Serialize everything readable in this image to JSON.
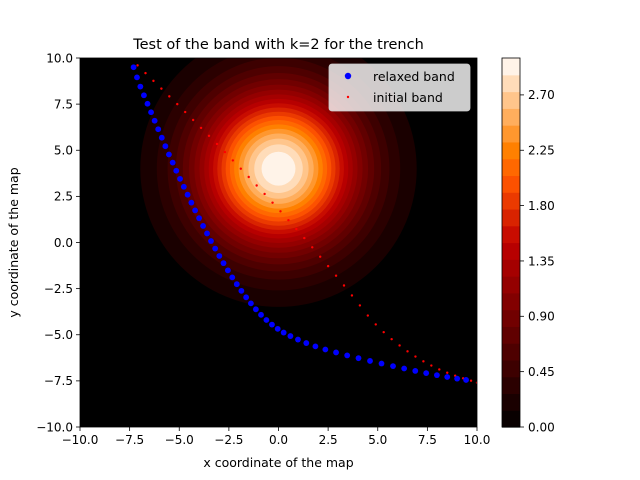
{
  "chart_data": {
    "type": "scatter",
    "title": "Test of the band with k=2 for the trench",
    "xlabel": "x coordinate of the map",
    "ylabel": "y coordinate of the map",
    "xlim": [
      -10,
      10
    ],
    "ylim": [
      -10,
      10
    ],
    "xticks": [
      -10,
      -7.5,
      -5,
      -2.5,
      0,
      2.5,
      5,
      7.5,
      10
    ],
    "yticks": [
      -10,
      -7.5,
      -5,
      -2.5,
      0,
      2.5,
      5,
      7.5,
      10
    ],
    "xtick_labels": [
      "−10.0",
      "−7.5",
      "−5.0",
      "−2.5",
      "0.0",
      "2.5",
      "5.0",
      "7.5",
      "10.0"
    ],
    "ytick_labels": [
      "−10.0",
      "−7.5",
      "−5.0",
      "−2.5",
      "0.0",
      "2.5",
      "5.0",
      "7.5",
      "10.0"
    ],
    "grid": false,
    "legend_position": "top-right",
    "legend": [
      {
        "label": "relaxed band",
        "color": "#0000ff",
        "marker": "large-dot"
      },
      {
        "label": "initial band",
        "color": "#ff0000",
        "marker": "small-dot"
      }
    ],
    "background_field": {
      "type": "filled-contour",
      "colormap": "gist_heat",
      "peak_center": [
        0,
        4
      ],
      "peak_value": 3.0,
      "levels": 22,
      "colorbar_range": [
        0,
        3.0
      ],
      "colorbar_ticks": [
        0.0,
        0.45,
        0.9,
        1.35,
        1.8,
        2.25,
        2.7
      ],
      "colorbar_tick_labels": [
        "0.00",
        "0.45",
        "0.90",
        "1.35",
        "1.80",
        "2.25",
        "2.70"
      ]
    },
    "series": [
      {
        "name": "relaxed band",
        "color": "#0000ff",
        "x": [
          -7.3,
          -7.13,
          -6.96,
          -6.78,
          -6.6,
          -6.42,
          -6.24,
          -6.06,
          -5.88,
          -5.7,
          -5.52,
          -5.33,
          -5.15,
          -4.96,
          -4.77,
          -4.58,
          -4.39,
          -4.2,
          -4.0,
          -3.8,
          -3.6,
          -3.4,
          -3.19,
          -2.98,
          -2.77,
          -2.55,
          -2.33,
          -2.1,
          -1.87,
          -1.63,
          -1.39,
          -1.14,
          -0.88,
          -0.61,
          -0.33,
          -0.04,
          0.26,
          0.6,
          0.98,
          1.4,
          1.86,
          2.36,
          2.9,
          3.46,
          4.03,
          4.61,
          5.19,
          5.77,
          6.33,
          6.89,
          7.44,
          7.98,
          8.5,
          9.0,
          9.45
        ],
        "y": [
          9.5,
          8.95,
          8.45,
          7.98,
          7.52,
          7.06,
          6.6,
          6.14,
          5.68,
          5.22,
          4.77,
          4.33,
          3.89,
          3.45,
          3.02,
          2.59,
          2.16,
          1.74,
          1.32,
          0.9,
          0.49,
          0.08,
          -0.33,
          -0.73,
          -1.12,
          -1.51,
          -1.89,
          -2.26,
          -2.62,
          -2.97,
          -3.3,
          -3.62,
          -3.92,
          -4.2,
          -4.45,
          -4.68,
          -4.88,
          -5.07,
          -5.26,
          -5.45,
          -5.63,
          -5.8,
          -5.96,
          -6.12,
          -6.27,
          -6.42,
          -6.56,
          -6.7,
          -6.83,
          -6.96,
          -7.08,
          -7.19,
          -7.29,
          -7.38,
          -7.45
        ]
      },
      {
        "name": "initial band",
        "color": "#ff0000",
        "x": [
          -7.1,
          -6.7,
          -6.3,
          -5.9,
          -5.5,
          -5.1,
          -4.7,
          -4.3,
          -3.9,
          -3.5,
          -3.1,
          -2.7,
          -2.3,
          -1.9,
          -1.5,
          -1.1,
          -0.7,
          -0.3,
          0.1,
          0.5,
          0.9,
          1.3,
          1.7,
          2.1,
          2.5,
          2.9,
          3.3,
          3.7,
          4.1,
          4.5,
          4.9,
          5.3,
          5.7,
          6.1,
          6.5,
          6.9,
          7.3,
          7.7,
          8.1,
          8.5,
          8.9,
          9.3,
          9.7,
          10.0
        ],
        "y": [
          9.6,
          9.18,
          8.76,
          8.34,
          7.92,
          7.5,
          7.07,
          6.64,
          6.21,
          5.78,
          5.34,
          4.9,
          4.45,
          4.0,
          3.55,
          3.09,
          2.63,
          2.16,
          1.69,
          1.21,
          0.73,
          0.24,
          -0.26,
          -0.77,
          -1.28,
          -1.8,
          -2.33,
          -2.87,
          -3.41,
          -3.96,
          -4.44,
          -4.86,
          -5.24,
          -5.58,
          -5.9,
          -6.18,
          -6.44,
          -6.67,
          -6.88,
          -7.06,
          -7.22,
          -7.36,
          -7.49,
          -7.6
        ]
      }
    ]
  }
}
